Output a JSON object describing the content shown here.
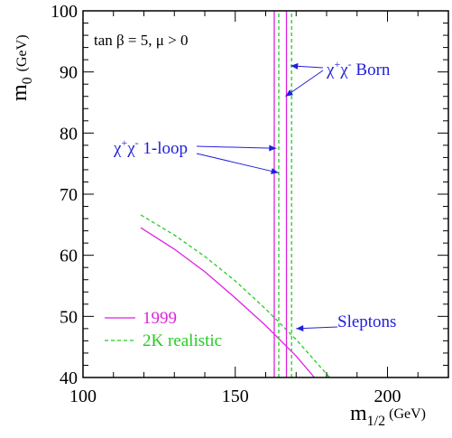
{
  "chart_data": {
    "type": "line",
    "xlabel": "m",
    "xlabel_sub": "1/2",
    "xlabel_unit": "(GeV)",
    "ylabel": "m",
    "ylabel_sub": "0",
    "ylabel_unit": "(GeV)",
    "xlim": [
      100,
      220
    ],
    "ylim": [
      40,
      100
    ],
    "x_ticks": [
      100,
      150,
      200
    ],
    "y_ticks": [
      40,
      50,
      60,
      70,
      80,
      90,
      100
    ],
    "parameters_label": "tan β = 5,  μ > 0",
    "colors": {
      "magenta": "#dd22dd",
      "green": "#22cc22",
      "annotation": "#2020dd",
      "axes": "#000000"
    },
    "legend": [
      {
        "label": "1999",
        "color": "#dd22dd",
        "dash": false
      },
      {
        "label": "2K realistic",
        "color": "#22cc22",
        "dash": true
      }
    ],
    "series": [
      {
        "name": "1999",
        "group": "sleptons",
        "color": "#dd22dd",
        "dash": false,
        "x": [
          119,
          130,
          140,
          150,
          160,
          170,
          176
        ],
        "y": [
          64.5,
          61.0,
          57.3,
          53.0,
          48.5,
          43.5,
          40.0
        ]
      },
      {
        "name": "2K realistic",
        "group": "sleptons",
        "color": "#22cc22",
        "dash": true,
        "x": [
          119,
          130,
          140,
          150,
          160,
          170,
          181
        ],
        "y": [
          66.6,
          63.3,
          59.8,
          55.8,
          51.2,
          46.2,
          40.0
        ]
      },
      {
        "name": "1999",
        "group": "chargino-1loop",
        "color": "#dd22dd",
        "dash": false,
        "x": [
          162.8,
          162.8
        ],
        "y": [
          40,
          100
        ]
      },
      {
        "name": "1999",
        "group": "chargino-born",
        "color": "#dd22dd",
        "dash": false,
        "x": [
          166.8,
          166.8
        ],
        "y": [
          40,
          100
        ]
      },
      {
        "name": "2K realistic",
        "group": "chargino-1loop",
        "color": "#22cc22",
        "dash": true,
        "x": [
          164.3,
          164.3
        ],
        "y": [
          40,
          100
        ]
      },
      {
        "name": "2K realistic",
        "group": "chargino-born",
        "color": "#22cc22",
        "dash": true,
        "x": [
          168.5,
          168.5
        ],
        "y": [
          40,
          100
        ]
      }
    ],
    "annotations": [
      {
        "label": "χ⁺χ⁻ Born",
        "arrows_to": [
          [
            168.2,
            91
          ],
          [
            166.5,
            86
          ]
        ]
      },
      {
        "label": "χ⁺χ⁻ 1-loop",
        "arrows_to": [
          [
            163.5,
            77.5
          ],
          [
            164.2,
            73.5
          ]
        ]
      },
      {
        "label": "Sleptons",
        "arrows_to": [
          [
            170,
            48
          ]
        ]
      }
    ]
  }
}
